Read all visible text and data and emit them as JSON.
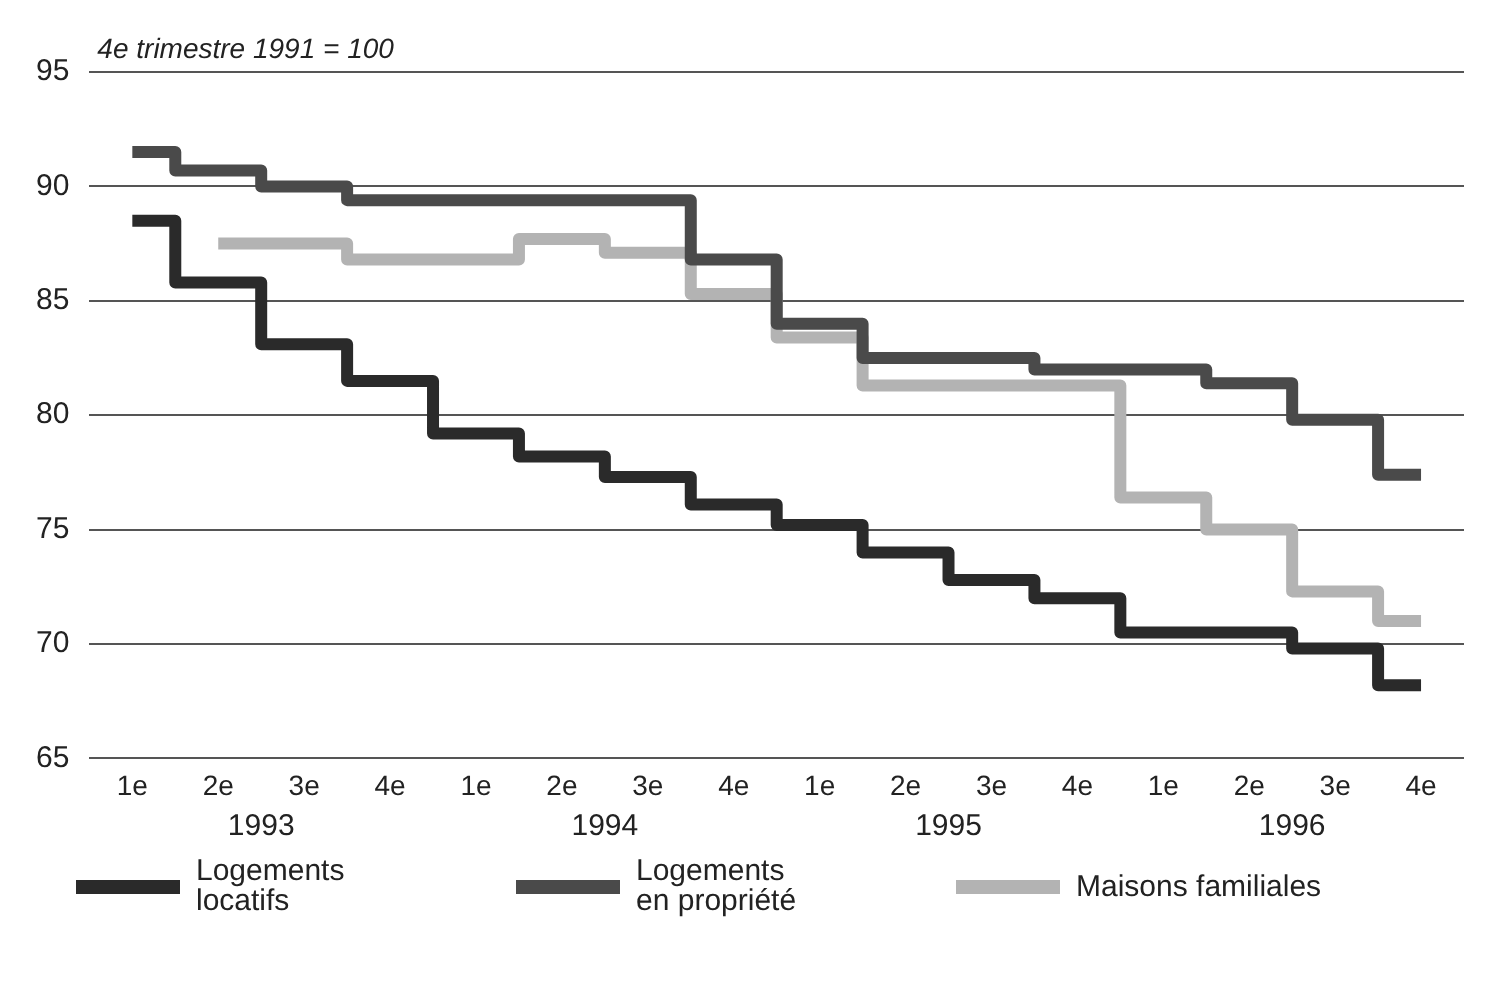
{
  "chart_data": {
    "type": "step",
    "ylabel": "4e trimestre 1991 = 100",
    "categories": [
      "1e",
      "2e",
      "3e",
      "4e",
      "1e",
      "2e",
      "3e",
      "4e",
      "1e",
      "2e",
      "3e",
      "4e",
      "1e",
      "2e",
      "3e",
      "4e"
    ],
    "annotations": [
      "1993",
      "1994",
      "1995",
      "1996"
    ],
    "series": [
      {
        "name": "Logements locatifs",
        "color": "#2a2a2a",
        "values": [
          88.5,
          85.8,
          83.1,
          81.5,
          79.2,
          78.2,
          77.3,
          76.1,
          75.2,
          74.0,
          72.8,
          72.0,
          70.5,
          70.5,
          69.8,
          68.2
        ]
      },
      {
        "name": "Logements en propriété",
        "color": "#4a4a4a",
        "values": [
          91.5,
          90.7,
          90.0,
          89.4,
          89.4,
          89.4,
          89.4,
          86.8,
          84.0,
          82.5,
          82.5,
          82.0,
          82.0,
          81.4,
          79.8,
          77.4
        ]
      },
      {
        "name": "Maisons familiales",
        "color": "#b3b3b3",
        "values": [
          null,
          87.5,
          87.5,
          86.8,
          86.8,
          87.7,
          87.1,
          85.3,
          83.4,
          81.3,
          81.3,
          81.3,
          76.4,
          75.0,
          72.3,
          71.0
        ]
      }
    ],
    "ylim": [
      65,
      95
    ],
    "yticks": [
      65,
      70,
      75,
      80,
      85,
      90,
      95
    ],
    "grid": "y",
    "legend": "bottom"
  }
}
